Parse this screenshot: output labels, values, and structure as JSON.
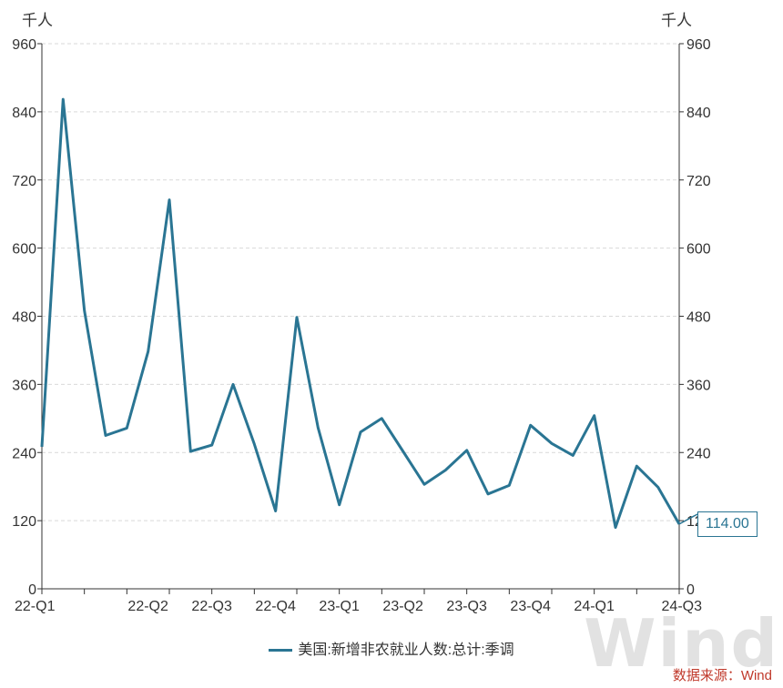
{
  "chart_data": {
    "type": "line",
    "y_unit_left": "千人",
    "y_unit_right": "千人",
    "ylim": [
      0,
      960
    ],
    "yticks": [
      0,
      120,
      240,
      360,
      480,
      600,
      720,
      840,
      960
    ],
    "x_tick_labels": [
      "22-Q1",
      "22-Q2",
      "22-Q3",
      "22-Q4",
      "23-Q1",
      "23-Q2",
      "23-Q3",
      "23-Q4",
      "24-Q1",
      "24-Q3"
    ],
    "x": [
      "2022-01",
      "2022-02",
      "2022-03",
      "2022-04",
      "2022-05",
      "2022-06",
      "2022-07",
      "2022-08",
      "2022-09",
      "2022-10",
      "2022-11",
      "2022-12",
      "2023-01",
      "2023-02",
      "2023-03",
      "2023-04",
      "2023-05",
      "2023-06",
      "2023-07",
      "2023-08",
      "2023-09",
      "2023-10",
      "2023-11",
      "2023-12",
      "2024-01",
      "2024-02",
      "2024-03",
      "2024-04",
      "2024-05",
      "2024-06",
      "2024-07"
    ],
    "series": [
      {
        "name": "美国:新增非农就业人数:总计:季调",
        "color": "#2a7593",
        "values": [
          250,
          862,
          490,
          270,
          283,
          418,
          685,
          242,
          253,
          360,
          255,
          137,
          478,
          284,
          148,
          276,
          300,
          242,
          184,
          209,
          244,
          167,
          182,
          288,
          256,
          235,
          305,
          108,
          216,
          179,
          114
        ]
      }
    ],
    "last_value_label": "114.00",
    "grid": true,
    "legend_position": "bottom"
  },
  "legend": {
    "label": "美国:新增非农就业人数:总计:季调"
  },
  "footer": {
    "source": "数据来源：Wind",
    "watermark": "Wind"
  }
}
